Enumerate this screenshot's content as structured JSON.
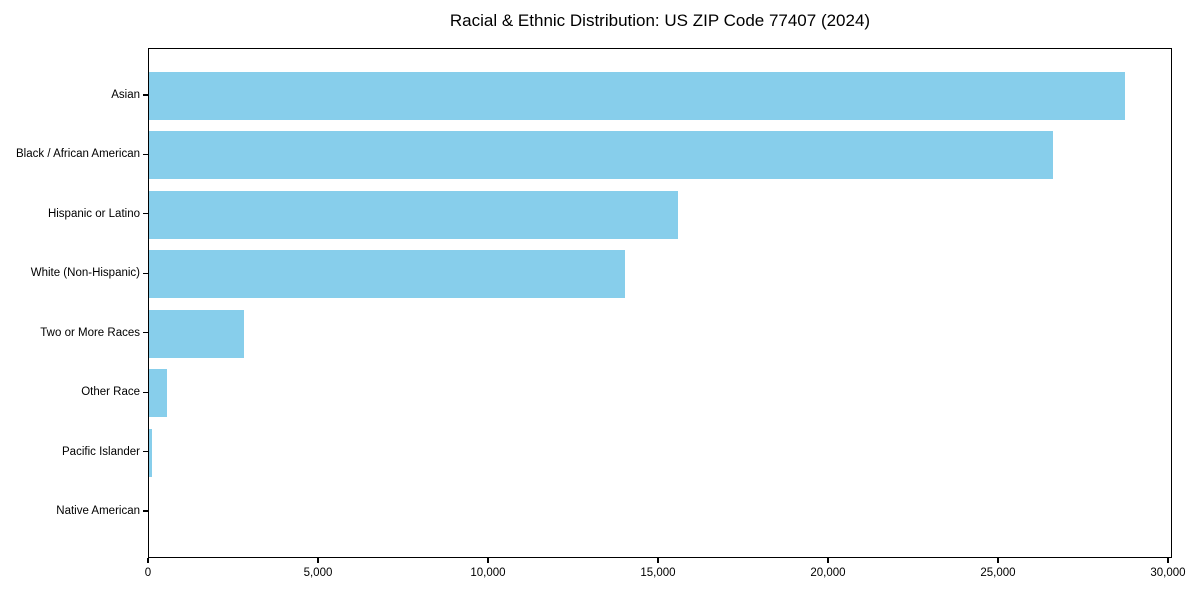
{
  "chart_data": {
    "type": "bar",
    "orientation": "horizontal",
    "title": "Racial & Ethnic Distribution: US ZIP Code 77407 (2024)",
    "categories": [
      "Asian",
      "Black / African American",
      "Hispanic or Latino",
      "White (Non-Hispanic)",
      "Two or More Races",
      "Other Race",
      "Pacific Islander",
      "Native American"
    ],
    "values": [
      28700,
      26600,
      15550,
      14000,
      2780,
      520,
      95,
      0
    ],
    "xlabel": "",
    "ylabel": "",
    "xlim": [
      0,
      30118
    ],
    "xticks": [
      0,
      5000,
      10000,
      15000,
      20000,
      25000,
      30000
    ],
    "xtick_labels": [
      "0",
      "5,000",
      "10,000",
      "15,000",
      "20,000",
      "25,000",
      "30,000"
    ],
    "bar_color": "#87CEEB",
    "text_color": "#000000",
    "grid": false,
    "legend": null
  }
}
